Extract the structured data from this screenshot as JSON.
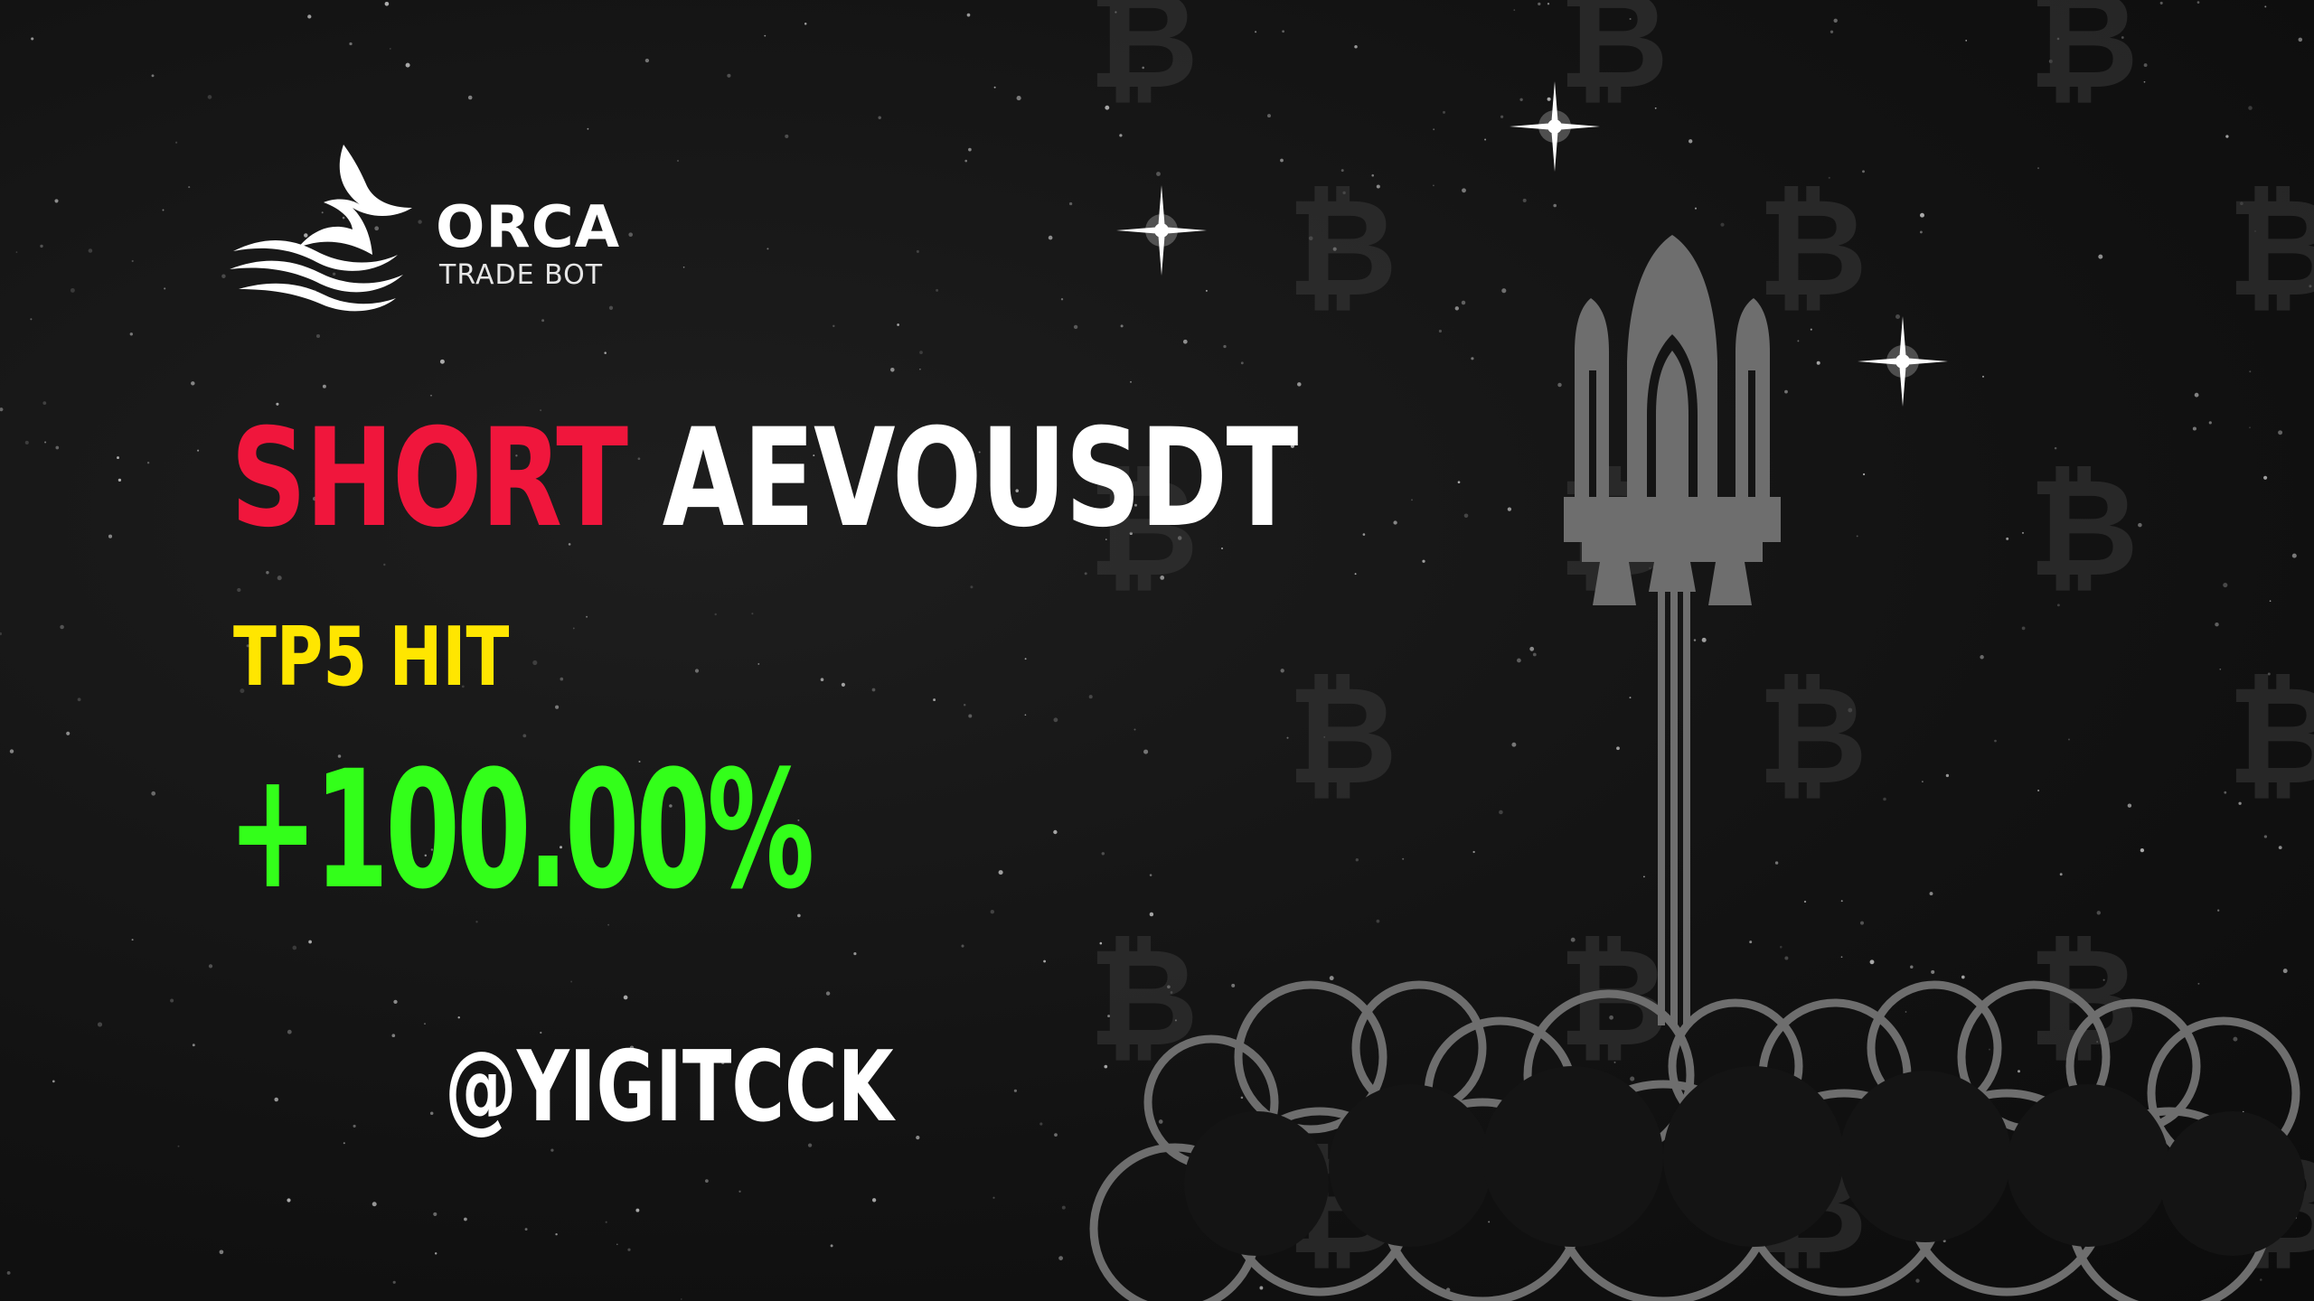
{
  "brand": {
    "name": "ORCA",
    "tagline": "TRADE BOT"
  },
  "signal": {
    "side": "SHORT",
    "symbol": "AEVOUSDT",
    "target": "TP5 HIT",
    "profit": "+100.00%",
    "author": "@YIGITCCK"
  },
  "colors": {
    "background": "#141414",
    "side": "#f0163c",
    "symbol": "#ffffff",
    "target": "#ffe600",
    "profit": "#33ff1a",
    "handle": "#ffffff",
    "illustration": "#6e6e6e",
    "bitcoin_watermark": "#3a3a3a"
  },
  "icons": {
    "logo": "orca-whale-tail-icon",
    "watermark": "bitcoin-icon",
    "illustration": "rocket-icon",
    "smoke": "cloud-icon",
    "sparkle": "star-sparkle-icon"
  }
}
